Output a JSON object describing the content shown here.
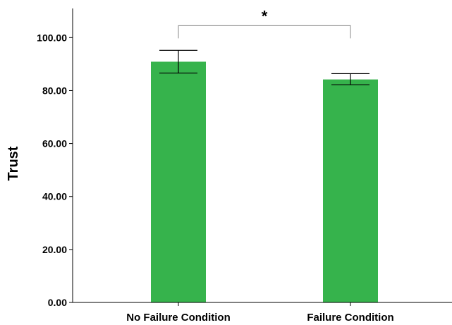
{
  "chart_data": {
    "type": "bar",
    "ylabel": "Trust",
    "xlabel": "",
    "categories": [
      "No Failure Condition",
      "Failure Condition"
    ],
    "values": [
      90.9,
      84.2
    ],
    "error_bars": [
      {
        "low": 86.6,
        "high": 95.2
      },
      {
        "low": 82.2,
        "high": 86.4
      }
    ],
    "ylim": [
      0,
      111
    ],
    "yticks": [
      0,
      20,
      40,
      60,
      80,
      100
    ],
    "ytick_labels": [
      "0.00",
      "20.00",
      "40.00",
      "60.00",
      "80.00",
      "100.00"
    ],
    "significance": {
      "label": "*",
      "between": [
        0,
        1
      ],
      "level": 104.5
    },
    "grid": false,
    "bar_color": "#36b34c"
  }
}
